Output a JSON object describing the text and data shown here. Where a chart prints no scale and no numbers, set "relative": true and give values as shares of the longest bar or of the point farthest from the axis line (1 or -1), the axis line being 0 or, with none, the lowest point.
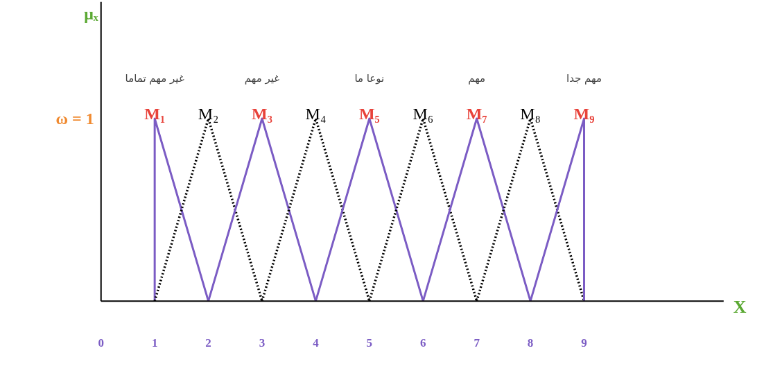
{
  "chart_data": {
    "type": "line",
    "xlabel": "X",
    "relative": true,
    "xlim": [
      0,
      11.6
    ],
    "xticks": [
      0,
      1,
      2,
      3,
      4,
      5,
      6,
      7,
      8,
      9
    ],
    "grid": false,
    "marker": "none",
    "series": [
      {
        "name": "M₁",
        "color": "#7b5cc4",
        "line_style": "solid",
        "x": [
          1,
          1,
          2
        ],
        "values": [
          0,
          1,
          0
        ]
      },
      {
        "name": "M₂",
        "color": "#000000",
        "line_style": "dotted",
        "x": [
          1,
          2,
          3
        ],
        "values": [
          0,
          1,
          0
        ]
      },
      {
        "name": "M₃",
        "color": "#7b5cc4",
        "line_style": "solid",
        "x": [
          2,
          3,
          4
        ],
        "values": [
          0,
          1,
          0
        ]
      },
      {
        "name": "M₄",
        "color": "#000000",
        "line_style": "dotted",
        "x": [
          3,
          4,
          5
        ],
        "values": [
          0,
          1,
          0
        ]
      },
      {
        "name": "M₅",
        "color": "#7b5cc4",
        "line_style": "solid",
        "x": [
          4,
          5,
          6
        ],
        "values": [
          0,
          1,
          0
        ]
      },
      {
        "name": "M₆",
        "color": "#000000",
        "line_style": "dotted",
        "x": [
          5,
          6,
          7
        ],
        "values": [
          0,
          1,
          0
        ]
      },
      {
        "name": "M₇",
        "color": "#7b5cc4",
        "line_style": "solid",
        "x": [
          6,
          7,
          8
        ],
        "values": [
          0,
          1,
          0
        ]
      },
      {
        "name": "M₈",
        "color": "#000000",
        "line_style": "dotted",
        "x": [
          7,
          8,
          9
        ],
        "values": [
          0,
          1,
          0
        ]
      },
      {
        "name": "M₉",
        "color": "#7b5cc4",
        "line_style": "solid",
        "x": [
          8,
          9,
          9
        ],
        "values": [
          0,
          1,
          0
        ]
      }
    ],
    "annotations": [
      "μₓ",
      "ω = 1",
      "غير مهم تماما",
      "غير مهم",
      "نوعا ما",
      "مهم",
      "مهم جدا"
    ]
  }
}
